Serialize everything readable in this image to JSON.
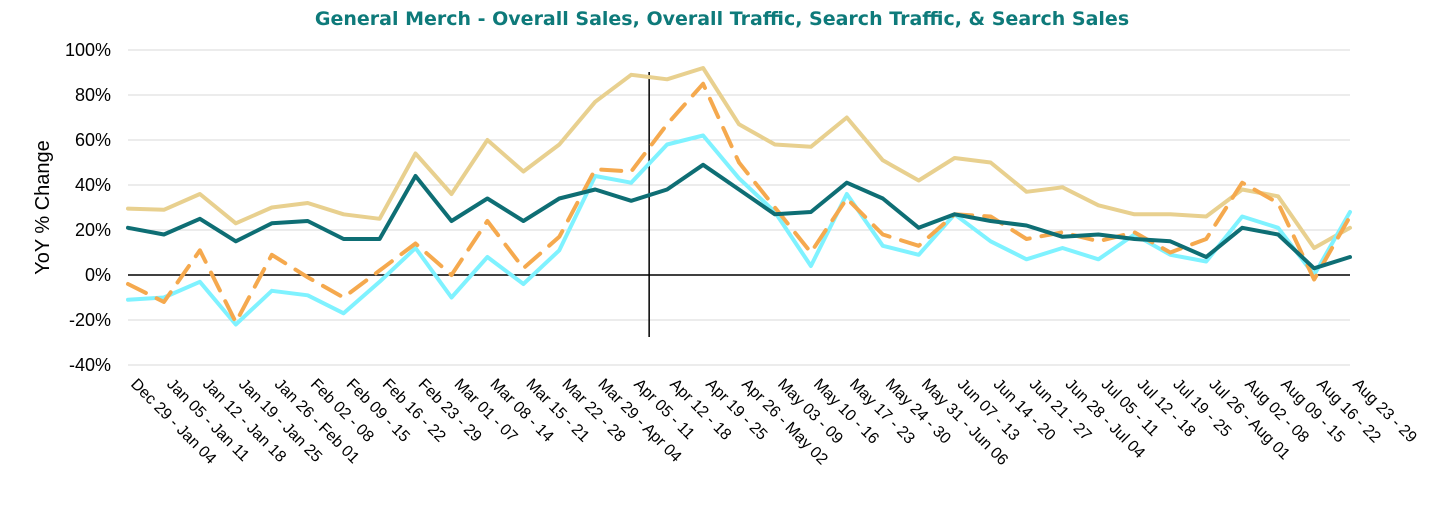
{
  "chart_data": {
    "type": "line",
    "title": "General Merch - Overall Sales, Overall Traffic, Search Traffic, & Search Sales",
    "ylabel": "YoY % Change",
    "xlabel": "",
    "ylim": [
      -40,
      100
    ],
    "yticks": [
      "-40%",
      "-20%",
      "0%",
      "20%",
      "40%",
      "60%",
      "80%",
      "100%"
    ],
    "ytick_values": [
      -40,
      -20,
      0,
      20,
      40,
      60,
      80,
      100
    ],
    "grid": true,
    "legend": "none",
    "reference_line_after": "Apr 05 - 11",
    "categories": [
      "Dec 29 - Jan 04",
      "Jan 05 - Jan 11",
      "Jan 12 - Jan 18",
      "Jan 19 - Jan 25",
      "Jan 26 - Feb 01",
      "Feb 02 - 08",
      "Feb 09 - 15",
      "Feb 16 - 22",
      "Feb 23 - 29",
      "Mar 01 - 07",
      "Mar 08 - 14",
      "Mar 15 - 21",
      "Mar 22 - 28",
      "Mar 29 - Apr 04",
      "Apr 05 - 11",
      "Apr 12 - 18",
      "Apr 19 - 25",
      "Apr 26 - May 02",
      "May 03 - 09",
      "May 10 - 16",
      "May 17 - 23",
      "May 24 - 30",
      "May 31 - Jun 06",
      "Jun 07 - 13",
      "Jun 14 - 20",
      "Jun 21 - 27",
      "Jun 28 - Jul 04",
      "Jul 05 - 11",
      "Jul 12 - 18",
      "Jul 19 - 25",
      "Jul 26 - Aug 01",
      "Aug 02 - 08",
      "Aug 09 - 15",
      "Aug 16 - 22",
      "Aug 23 - 29"
    ],
    "series": [
      {
        "color": "#e8d08f",
        "dash": "solid",
        "values": [
          29.5,
          29,
          36,
          23,
          30,
          32,
          27,
          25,
          54,
          36,
          60,
          46,
          58,
          77,
          89,
          87,
          92,
          67,
          58,
          57,
          70,
          51,
          42,
          52,
          50,
          37,
          39,
          31,
          27,
          27,
          26,
          38,
          35,
          12,
          21
        ]
      },
      {
        "color": "#7ff2ff",
        "dash": "solid",
        "values": [
          -11,
          -10,
          -3,
          -22,
          -7,
          -9,
          -17,
          -3,
          12,
          -10,
          8,
          -4,
          11,
          44,
          41,
          58,
          62,
          43,
          28,
          4,
          36,
          13,
          9,
          27,
          15,
          7,
          12,
          7,
          18,
          9,
          6,
          26,
          21,
          0,
          28
        ]
      },
      {
        "color": "#f5a94e",
        "dash": "dashed",
        "values": [
          -4,
          -12,
          11,
          -21,
          9,
          -1,
          -10,
          2,
          14,
          0,
          24,
          3,
          17,
          47,
          46,
          67,
          85,
          50,
          30,
          10,
          34,
          18,
          13,
          27,
          26,
          16,
          19,
          15,
          19,
          10,
          16,
          41,
          32,
          -2,
          26
        ]
      },
      {
        "color": "#0e6e74",
        "dash": "solid",
        "values": [
          21,
          18,
          25,
          15,
          23,
          24,
          16,
          16,
          44,
          24,
          34,
          24,
          34,
          38,
          33,
          38,
          49,
          38,
          27,
          28,
          41,
          34,
          21,
          27,
          24,
          22,
          17,
          18,
          16,
          15,
          8,
          21,
          18,
          3,
          8
        ]
      }
    ]
  }
}
